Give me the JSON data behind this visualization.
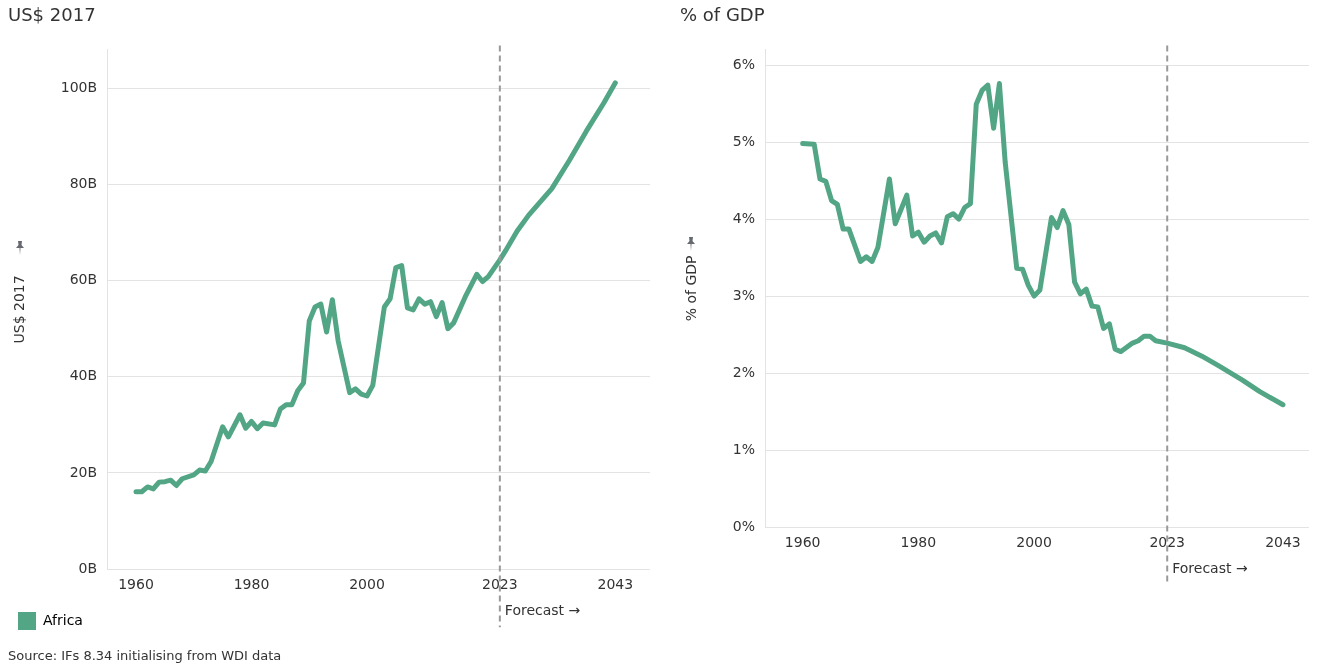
{
  "chart_data": [
    {
      "type": "line",
      "title": "US$ 2017",
      "ylabel": "US$ 2017",
      "legend": "bottom",
      "grid": "y",
      "marker": "none",
      "line_style": "solid",
      "xlim": [
        1955,
        2049
      ],
      "xticks": [
        1960,
        1980,
        2000,
        2023,
        2043
      ],
      "ylim": [
        0,
        108
      ],
      "yticks": [
        {
          "value": 0,
          "label": "0B"
        },
        {
          "value": 20,
          "label": "20B"
        },
        {
          "value": 40,
          "label": "40B"
        },
        {
          "value": 60,
          "label": "60B"
        },
        {
          "value": 80,
          "label": "80B"
        },
        {
          "value": 100,
          "label": "100B"
        }
      ],
      "ref_lines": [
        {
          "axis": "x",
          "value": 2023,
          "label": "Forecast →",
          "color": "#999999",
          "line_style": "dashed"
        }
      ],
      "annotations": [
        "Source: IFs 8.34 initialising from WDI data"
      ],
      "series": [
        {
          "name": "Africa",
          "color": "#52a686",
          "x": [
            1960,
            1961,
            1962,
            1963,
            1964,
            1965,
            1966,
            1967,
            1968,
            1970,
            1971,
            1972,
            1973,
            1975,
            1976,
            1978,
            1979,
            1980,
            1981,
            1982,
            1984,
            1985,
            1986,
            1987,
            1988,
            1989,
            1990,
            1991,
            1992,
            1993,
            1994,
            1995,
            1997,
            1998,
            1999,
            2000,
            2001,
            2003,
            2004,
            2005,
            2006,
            2007,
            2008,
            2009,
            2010,
            2011,
            2012,
            2013,
            2014,
            2015,
            2017,
            2019,
            2020,
            2021,
            2023,
            2024,
            2026,
            2028,
            2032,
            2035,
            2038,
            2041,
            2043
          ],
          "values": [
            16.1,
            16.1,
            17.1,
            16.7,
            18.1,
            18.2,
            18.5,
            17.4,
            18.8,
            19.6,
            20.6,
            20.4,
            22.4,
            29.6,
            27.5,
            32.1,
            29.3,
            30.7,
            29.2,
            30.4,
            30.0,
            33.3,
            34.2,
            34.2,
            37.1,
            38.7,
            51.6,
            54.5,
            55.1,
            49.3,
            56.0,
            47.5,
            36.7,
            37.5,
            36.4,
            36.0,
            38.2,
            54.5,
            56.2,
            62.7,
            63.1,
            54.3,
            53.9,
            56.2,
            55.1,
            55.6,
            52.5,
            55.4,
            50.0,
            51.2,
            56.6,
            61.3,
            59.8,
            60.8,
            64.3,
            66.2,
            70.3,
            73.6,
            79.1,
            84.9,
            91.1,
            96.9,
            101.1
          ]
        }
      ]
    },
    {
      "type": "line",
      "title": "% of GDP",
      "ylabel": "% of GDP",
      "grid": "y",
      "marker": "none",
      "line_style": "solid",
      "xlim": [
        1953.5,
        2047.5
      ],
      "xticks": [
        1960,
        1980,
        2000,
        2023,
        2043
      ],
      "ylim": [
        0,
        6.2
      ],
      "yticks": [
        {
          "value": 0,
          "label": "0%"
        },
        {
          "value": 1,
          "label": "1%"
        },
        {
          "value": 2,
          "label": "2%"
        },
        {
          "value": 3,
          "label": "3%"
        },
        {
          "value": 4,
          "label": "4%"
        },
        {
          "value": 5,
          "label": "5%"
        },
        {
          "value": 6,
          "label": "6%"
        }
      ],
      "ref_lines": [
        {
          "axis": "x",
          "value": 2023,
          "label": "Forecast →",
          "color": "#999999",
          "line_style": "dashed"
        }
      ],
      "series": [
        {
          "color": "#52a686",
          "x": [
            1960,
            1962,
            1963,
            1964,
            1965,
            1966,
            1967,
            1968,
            1970,
            1971,
            1972,
            1973,
            1975,
            1976,
            1978,
            1979,
            1980,
            1981,
            1982,
            1983,
            1984,
            1985,
            1986,
            1987,
            1988,
            1989,
            1990,
            1991,
            1992,
            1993,
            1994,
            1995,
            1997,
            1998,
            1999,
            2000,
            2001,
            2003,
            2004,
            2005,
            2006,
            2007,
            2008,
            2009,
            2010,
            2011,
            2012,
            2013,
            2014,
            2015,
            2017,
            2018,
            2019,
            2020,
            2021,
            2023,
            2026,
            2029,
            2032,
            2036,
            2039,
            2043
          ],
          "values": [
            4.98,
            4.97,
            4.52,
            4.49,
            4.24,
            4.19,
            3.87,
            3.87,
            3.45,
            3.51,
            3.45,
            3.63,
            4.52,
            3.94,
            4.31,
            3.78,
            3.83,
            3.7,
            3.78,
            3.82,
            3.69,
            4.03,
            4.07,
            4.0,
            4.15,
            4.2,
            5.49,
            5.67,
            5.74,
            5.18,
            5.76,
            4.74,
            3.36,
            3.35,
            3.14,
            3.0,
            3.08,
            4.02,
            3.89,
            4.11,
            3.93,
            3.18,
            3.03,
            3.09,
            2.87,
            2.86,
            2.58,
            2.64,
            2.31,
            2.28,
            2.39,
            2.42,
            2.48,
            2.48,
            2.42,
            2.39,
            2.33,
            2.22,
            2.09,
            1.91,
            1.76,
            1.59
          ]
        }
      ]
    }
  ]
}
